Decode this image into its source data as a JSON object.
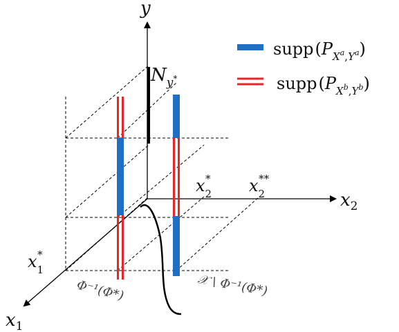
{
  "diagram": {
    "axes": {
      "y": "y",
      "x2": "x",
      "x2_sub": "2",
      "x1": "x",
      "x1_sub": "1"
    },
    "ticks": {
      "x2_star": "x",
      "x2_star_sub": "2",
      "x2_star_sup": "*",
      "x2_dstar": "x",
      "x2_dstar_sub": "2",
      "x2_dstar_sup": "**",
      "x1_star": "x",
      "x1_star_sub": "1",
      "x1_star_sup": "*"
    },
    "n_label": {
      "N": "N",
      "y": "y",
      "star": "*"
    },
    "legend": [
      {
        "supp": "supp",
        "P": "P",
        "Xsym": "X",
        "Ysym": "Y",
        "sup": "a",
        "color": "#1f6fc5",
        "style": "solid"
      },
      {
        "supp": "supp",
        "P": "P",
        "Xsym": "X",
        "Ysym": "Y",
        "sup": "b",
        "color": "#e8262a",
        "style": "double"
      }
    ],
    "region_labels": {
      "preimage": "Φ⁻¹(Φ*)",
      "complement": "𝒳 \\ Φ⁻¹(Φ*)"
    },
    "colors": {
      "blue": "#1f6fc5",
      "red": "#e8262a",
      "axis": "#000000"
    }
  }
}
